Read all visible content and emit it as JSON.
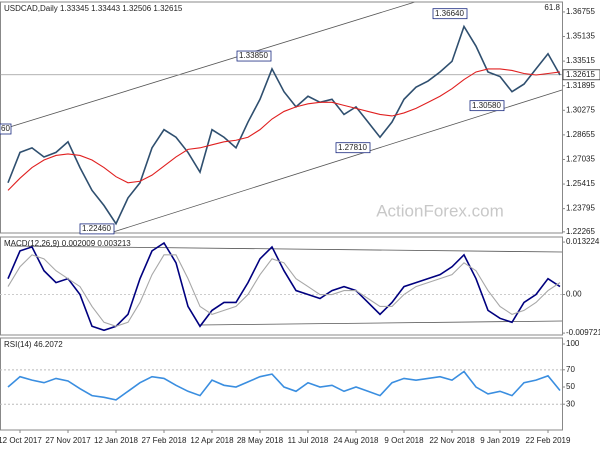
{
  "chart_data": [
    {
      "type": "line",
      "title": "USDCAD,Daily 1.33345 1.33443 1.32506 1.32615",
      "ylim": [
        1.2219,
        1.3741
      ],
      "yticks": [
        1.36755,
        1.35135,
        1.33515,
        1.31895,
        1.30275,
        1.28655,
        1.27035,
        1.25415,
        1.23795,
        1.22265
      ],
      "series": [
        {
          "color": "#2f4f6f",
          "values": [
            1.255,
            1.275,
            1.278,
            1.272,
            1.275,
            1.282,
            1.265,
            1.25,
            1.24,
            1.228,
            1.245,
            1.255,
            1.278,
            1.29,
            1.285,
            1.275,
            1.262,
            1.29,
            1.285,
            1.278,
            1.295,
            1.31,
            1.33,
            1.315,
            1.305,
            1.312,
            1.308,
            1.31,
            1.3,
            1.305,
            1.295,
            1.285,
            1.295,
            1.31,
            1.318,
            1.322,
            1.328,
            1.335,
            1.358,
            1.345,
            1.328,
            1.325,
            1.315,
            1.32,
            1.33,
            1.34,
            1.326
          ]
        },
        {
          "color": "#e02020",
          "values": [
            1.25,
            1.258,
            1.265,
            1.27,
            1.273,
            1.274,
            1.273,
            1.27,
            1.265,
            1.259,
            1.255,
            1.256,
            1.26,
            1.266,
            1.272,
            1.277,
            1.278,
            1.28,
            1.282,
            1.283,
            1.285,
            1.29,
            1.297,
            1.302,
            1.305,
            1.307,
            1.308,
            1.308,
            1.306,
            1.304,
            1.302,
            1.3,
            1.299,
            1.301,
            1.304,
            1.308,
            1.312,
            1.317,
            1.323,
            1.328,
            1.33,
            1.33,
            1.329,
            1.327,
            1.326,
            1.327,
            1.328
          ]
        }
      ],
      "last_price": 1.32615,
      "annotations": [
        {
          "value": 1.2246,
          "label": "1.22460"
        },
        {
          "value": 1.3385,
          "label": "1.33850"
        },
        {
          "value": 1.2781,
          "label": "1.27810"
        },
        {
          "value": 1.3664,
          "label": "1.36640"
        },
        {
          "value": 1.3058,
          "label": "1.30580"
        }
      ],
      "edge_label": "60",
      "fib_label": "61.8",
      "watermark": "ActionForex.com"
    },
    {
      "type": "line",
      "title": "MACD(12,26,9) 0.002009 0.003213",
      "ylim": [
        -0.0102,
        0.0145
      ],
      "yticks": [
        0.013224,
        {
          "value": 0,
          "label": "0.00"
        },
        -0.009721
      ],
      "series": [
        {
          "color": "#00007f",
          "values": [
            0.004,
            0.011,
            0.012,
            0.006,
            0.003,
            0.004,
            0.0,
            -0.008,
            -0.009,
            -0.008,
            -0.005,
            0.004,
            0.011,
            0.013,
            0.008,
            -0.003,
            -0.008,
            -0.004,
            -0.002,
            -0.002,
            0.003,
            0.009,
            0.012,
            0.006,
            0.001,
            0.0,
            -0.001,
            0.001,
            0.002,
            0.001,
            -0.002,
            -0.005,
            -0.002,
            0.002,
            0.003,
            0.004,
            0.005,
            0.007,
            0.01,
            0.004,
            -0.004,
            -0.006,
            -0.007,
            -0.002,
            0.0,
            0.004,
            0.002
          ]
        },
        {
          "color": "#a8a8a8",
          "values": [
            0.002,
            0.007,
            0.01,
            0.009,
            0.006,
            0.004,
            0.002,
            -0.003,
            -0.007,
            -0.008,
            -0.007,
            -0.002,
            0.005,
            0.01,
            0.01,
            0.004,
            -0.003,
            -0.005,
            -0.004,
            -0.003,
            0.0,
            0.005,
            0.009,
            0.008,
            0.004,
            0.002,
            0.0,
            0.0,
            0.001,
            0.001,
            -0.001,
            -0.003,
            -0.003,
            0.0,
            0.002,
            0.003,
            0.004,
            0.005,
            0.008,
            0.006,
            0.001,
            -0.003,
            -0.005,
            -0.004,
            -0.002,
            0.001,
            0.003
          ]
        }
      ]
    },
    {
      "type": "line",
      "title": "RSI(14) 46.2072",
      "ylim": [
        0,
        107
      ],
      "yticks": [
        100,
        70,
        50,
        30
      ],
      "categories": [
        null,
        "12 Oct 2017",
        null,
        null,
        null,
        "27 Nov 2017",
        null,
        null,
        null,
        "12 Jan 2018",
        null,
        null,
        null,
        "27 Feb 2018",
        null,
        null,
        null,
        "12 Apr 2018",
        null,
        null,
        null,
        "28 May 2018",
        null,
        null,
        null,
        "11 Jul 2018",
        null,
        null,
        null,
        "24 Aug 2018",
        null,
        null,
        null,
        "9 Oct 2018",
        null,
        null,
        null,
        "22 Nov 2018",
        null,
        null,
        null,
        "9 Jan 2019",
        null,
        null,
        null,
        "22 Feb 2019",
        null
      ],
      "series": [
        {
          "color": "#3a8ee0",
          "values": [
            50,
            62,
            58,
            55,
            60,
            57,
            48,
            40,
            38,
            35,
            45,
            55,
            62,
            60,
            52,
            45,
            40,
            58,
            52,
            50,
            56,
            62,
            65,
            50,
            45,
            55,
            50,
            52,
            45,
            50,
            45,
            40,
            55,
            60,
            58,
            60,
            62,
            58,
            68,
            50,
            42,
            45,
            40,
            55,
            58,
            63,
            46
          ]
        }
      ]
    }
  ]
}
